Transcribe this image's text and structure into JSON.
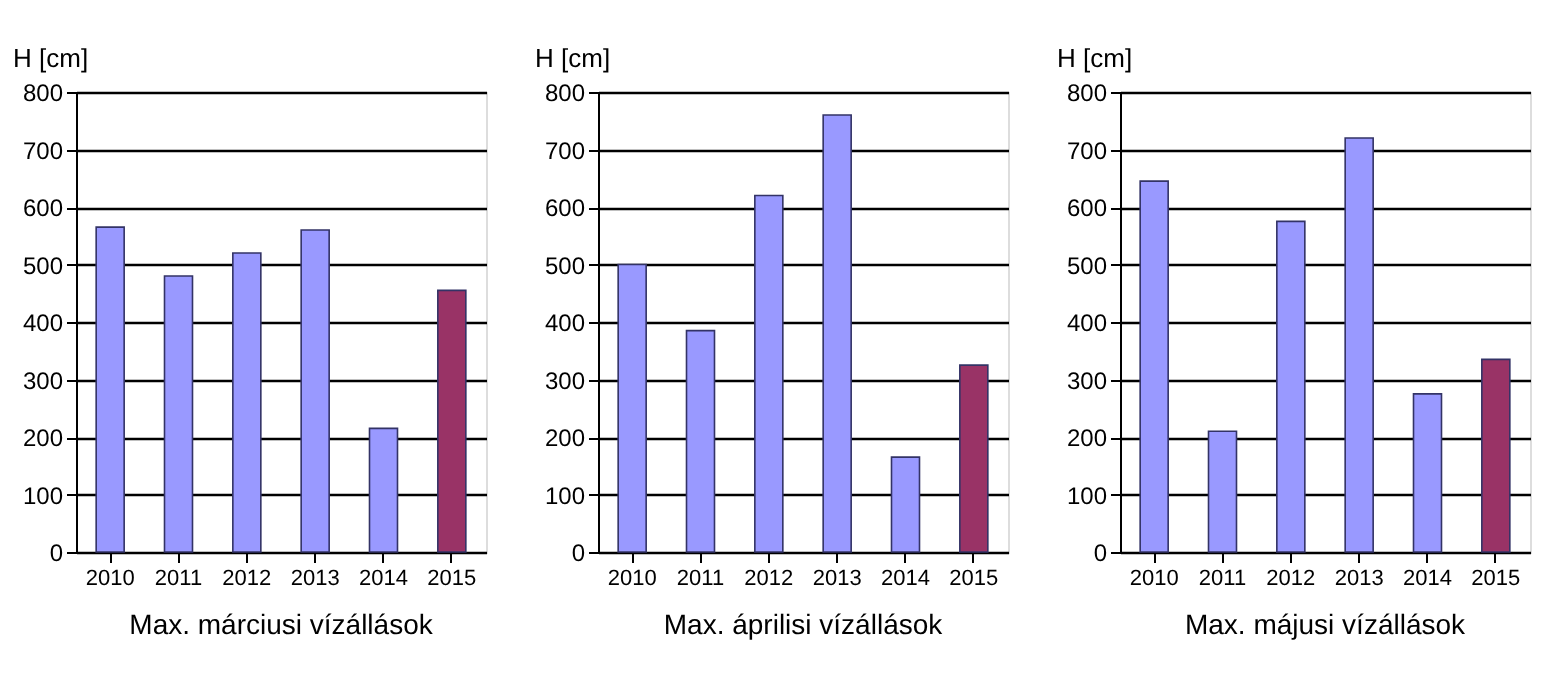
{
  "chart_data": [
    {
      "type": "bar",
      "title": "Max. márciusi vízállások",
      "ylabel": "H [cm]",
      "categories": [
        "2010",
        "2011",
        "2012",
        "2013",
        "2014",
        "2015"
      ],
      "values": [
        565,
        480,
        520,
        560,
        215,
        455
      ],
      "colors": [
        "#9999ff",
        "#9999ff",
        "#9999ff",
        "#9999ff",
        "#9999ff",
        "#993366"
      ],
      "ylim": [
        0,
        800
      ],
      "yticks": [
        0,
        100,
        200,
        300,
        400,
        500,
        600,
        700,
        800
      ],
      "grid": "y"
    },
    {
      "type": "bar",
      "title": "Max. áprilisi vízállások",
      "ylabel": "H [cm]",
      "categories": [
        "2010",
        "2011",
        "2012",
        "2013",
        "2014",
        "2015"
      ],
      "values": [
        500,
        385,
        620,
        760,
        165,
        325
      ],
      "colors": [
        "#9999ff",
        "#9999ff",
        "#9999ff",
        "#9999ff",
        "#9999ff",
        "#993366"
      ],
      "ylim": [
        0,
        800
      ],
      "yticks": [
        0,
        100,
        200,
        300,
        400,
        500,
        600,
        700,
        800
      ],
      "grid": "y"
    },
    {
      "type": "bar",
      "title": "Max. májusi vízállások",
      "ylabel": "H [cm]",
      "categories": [
        "2010",
        "2011",
        "2012",
        "2013",
        "2014",
        "2015"
      ],
      "values": [
        645,
        210,
        575,
        720,
        275,
        335
      ],
      "colors": [
        "#9999ff",
        "#9999ff",
        "#9999ff",
        "#9999ff",
        "#9999ff",
        "#993366"
      ],
      "ylim": [
        0,
        800
      ],
      "yticks": [
        0,
        100,
        200,
        300,
        400,
        500,
        600,
        700,
        800
      ],
      "grid": "y"
    }
  ]
}
